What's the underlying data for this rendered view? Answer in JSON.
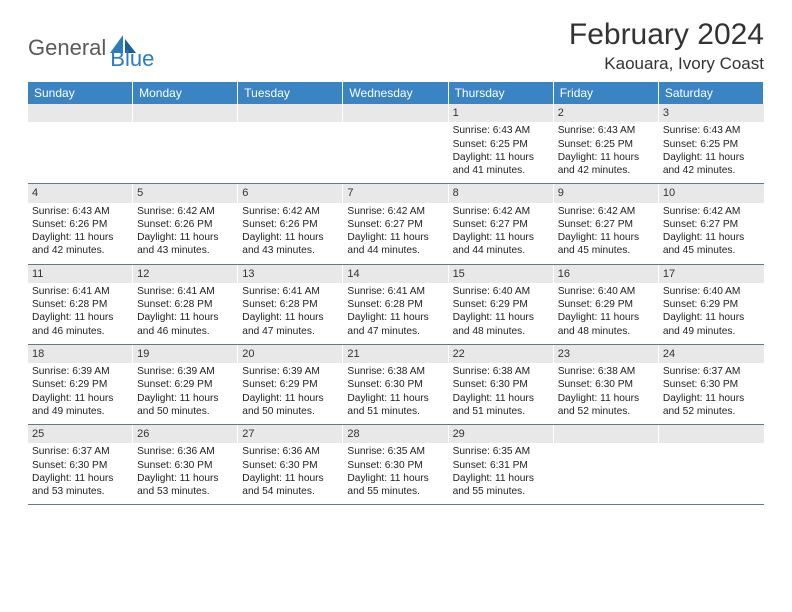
{
  "brand": {
    "part1": "General",
    "part2": "Blue"
  },
  "title": "February 2024",
  "location": "Kaouara, Ivory Coast",
  "colors": {
    "header_bg": "#3b84c4",
    "header_text": "#ffffff",
    "daynum_bg": "#e8e8e8",
    "border": "#5a7a9a",
    "brand_gray": "#5a5a5a",
    "brand_blue": "#2b7bbf"
  },
  "weekdays": [
    "Sunday",
    "Monday",
    "Tuesday",
    "Wednesday",
    "Thursday",
    "Friday",
    "Saturday"
  ],
  "grid": {
    "first_weekday_index": 4,
    "days_in_month": 29
  },
  "days": {
    "1": {
      "sunrise": "6:43 AM",
      "sunset": "6:25 PM",
      "daylight": "11 hours and 41 minutes."
    },
    "2": {
      "sunrise": "6:43 AM",
      "sunset": "6:25 PM",
      "daylight": "11 hours and 42 minutes."
    },
    "3": {
      "sunrise": "6:43 AM",
      "sunset": "6:25 PM",
      "daylight": "11 hours and 42 minutes."
    },
    "4": {
      "sunrise": "6:43 AM",
      "sunset": "6:26 PM",
      "daylight": "11 hours and 42 minutes."
    },
    "5": {
      "sunrise": "6:42 AM",
      "sunset": "6:26 PM",
      "daylight": "11 hours and 43 minutes."
    },
    "6": {
      "sunrise": "6:42 AM",
      "sunset": "6:26 PM",
      "daylight": "11 hours and 43 minutes."
    },
    "7": {
      "sunrise": "6:42 AM",
      "sunset": "6:27 PM",
      "daylight": "11 hours and 44 minutes."
    },
    "8": {
      "sunrise": "6:42 AM",
      "sunset": "6:27 PM",
      "daylight": "11 hours and 44 minutes."
    },
    "9": {
      "sunrise": "6:42 AM",
      "sunset": "6:27 PM",
      "daylight": "11 hours and 45 minutes."
    },
    "10": {
      "sunrise": "6:42 AM",
      "sunset": "6:27 PM",
      "daylight": "11 hours and 45 minutes."
    },
    "11": {
      "sunrise": "6:41 AM",
      "sunset": "6:28 PM",
      "daylight": "11 hours and 46 minutes."
    },
    "12": {
      "sunrise": "6:41 AM",
      "sunset": "6:28 PM",
      "daylight": "11 hours and 46 minutes."
    },
    "13": {
      "sunrise": "6:41 AM",
      "sunset": "6:28 PM",
      "daylight": "11 hours and 47 minutes."
    },
    "14": {
      "sunrise": "6:41 AM",
      "sunset": "6:28 PM",
      "daylight": "11 hours and 47 minutes."
    },
    "15": {
      "sunrise": "6:40 AM",
      "sunset": "6:29 PM",
      "daylight": "11 hours and 48 minutes."
    },
    "16": {
      "sunrise": "6:40 AM",
      "sunset": "6:29 PM",
      "daylight": "11 hours and 48 minutes."
    },
    "17": {
      "sunrise": "6:40 AM",
      "sunset": "6:29 PM",
      "daylight": "11 hours and 49 minutes."
    },
    "18": {
      "sunrise": "6:39 AM",
      "sunset": "6:29 PM",
      "daylight": "11 hours and 49 minutes."
    },
    "19": {
      "sunrise": "6:39 AM",
      "sunset": "6:29 PM",
      "daylight": "11 hours and 50 minutes."
    },
    "20": {
      "sunrise": "6:39 AM",
      "sunset": "6:29 PM",
      "daylight": "11 hours and 50 minutes."
    },
    "21": {
      "sunrise": "6:38 AM",
      "sunset": "6:30 PM",
      "daylight": "11 hours and 51 minutes."
    },
    "22": {
      "sunrise": "6:38 AM",
      "sunset": "6:30 PM",
      "daylight": "11 hours and 51 minutes."
    },
    "23": {
      "sunrise": "6:38 AM",
      "sunset": "6:30 PM",
      "daylight": "11 hours and 52 minutes."
    },
    "24": {
      "sunrise": "6:37 AM",
      "sunset": "6:30 PM",
      "daylight": "11 hours and 52 minutes."
    },
    "25": {
      "sunrise": "6:37 AM",
      "sunset": "6:30 PM",
      "daylight": "11 hours and 53 minutes."
    },
    "26": {
      "sunrise": "6:36 AM",
      "sunset": "6:30 PM",
      "daylight": "11 hours and 53 minutes."
    },
    "27": {
      "sunrise": "6:36 AM",
      "sunset": "6:30 PM",
      "daylight": "11 hours and 54 minutes."
    },
    "28": {
      "sunrise": "6:35 AM",
      "sunset": "6:30 PM",
      "daylight": "11 hours and 55 minutes."
    },
    "29": {
      "sunrise": "6:35 AM",
      "sunset": "6:31 PM",
      "daylight": "11 hours and 55 minutes."
    }
  },
  "labels": {
    "sunrise_prefix": "Sunrise: ",
    "sunset_prefix": "Sunset: ",
    "daylight_prefix": "Daylight: "
  }
}
